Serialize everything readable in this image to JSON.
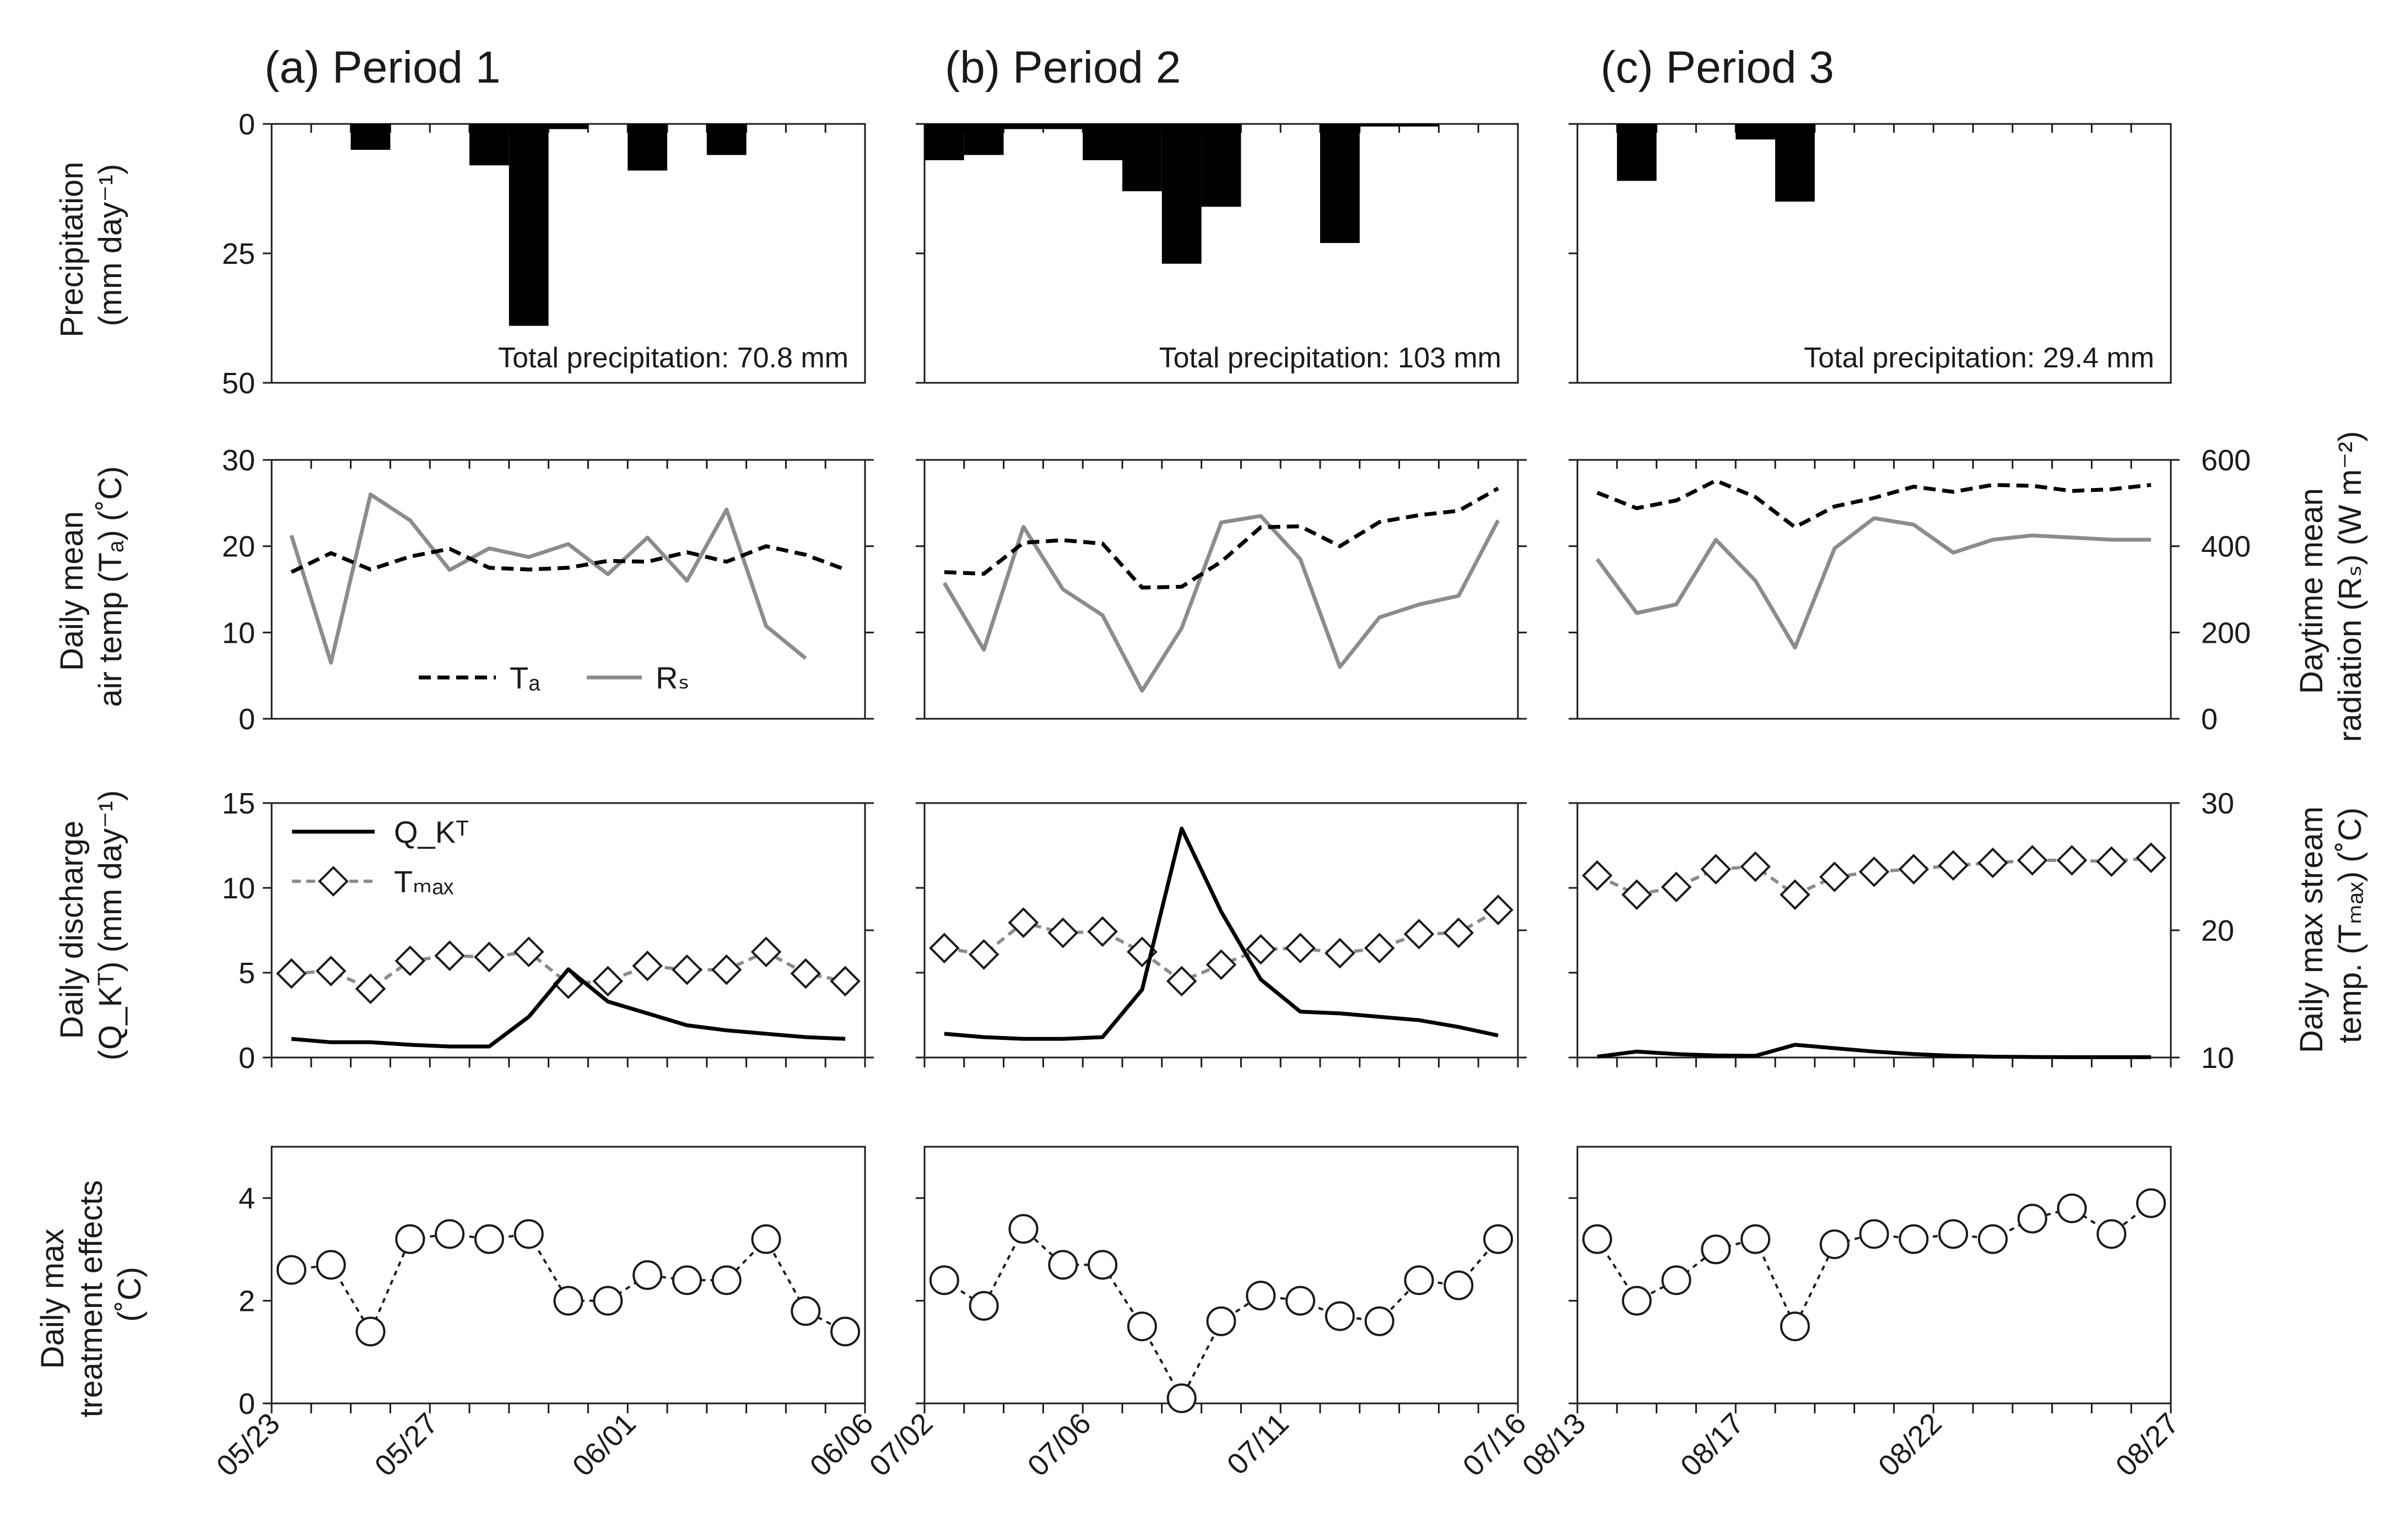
{
  "panels": [
    {
      "title": "(a) Period 1",
      "dates": [
        "05/23",
        "05/27",
        "06/01",
        "06/06"
      ],
      "total_precip": "Total precipitation: 70.8 mm"
    },
    {
      "title": "(b) Period 2",
      "dates": [
        "07/02",
        "07/06",
        "07/11",
        "07/16"
      ],
      "total_precip": "Total precipitation: 103 mm"
    },
    {
      "title": "(c) Period 3",
      "dates": [
        "08/13",
        "08/17",
        "08/22",
        "08/27"
      ],
      "total_precip": "Total precipitation: 29.4 mm"
    }
  ],
  "axes": {
    "precip_label": [
      "Precipitation",
      "(mm day⁻¹)"
    ],
    "temp_label": [
      "Daily mean",
      "air temp (Tₐ) (˚C)"
    ],
    "rad_label": [
      "Daytime mean",
      "radiation (Rₛ) (W m⁻²)"
    ],
    "q_label": [
      "Daily discharge",
      "(Q_Kᵀ) (mm day⁻¹)"
    ],
    "tmax_label": [
      "Daily max stream",
      "temp. (Tₘₐₓ) (˚C)"
    ],
    "effect_label": [
      "Daily max",
      "treatment effects",
      "(˚C)"
    ],
    "precip_ticks": [
      "0",
      "25",
      "50"
    ],
    "temp_ticks": [
      "0",
      "10",
      "20",
      "30"
    ],
    "rad_ticks": [
      "0",
      "200",
      "400",
      "600"
    ],
    "q_ticks": [
      "0",
      "5",
      "10",
      "15"
    ],
    "tmax_ticks": [
      "10",
      "20",
      "30"
    ],
    "effect_ticks": [
      "0",
      "2",
      "4"
    ]
  },
  "legend": {
    "ta": "Tₐ",
    "rs": "Rₛ",
    "q": "Q_Kᵀ",
    "tmax": "Tₘₐₓ"
  },
  "colors": {
    "ta": "#000000",
    "rs": "#8c8c8c",
    "q": "#000000",
    "tmax": "#8c8c8c",
    "bars": "#000000"
  },
  "chart_data": [
    {
      "type": "bar",
      "title": "(a) Period 1",
      "ylabel": "Precipitation (mm day⁻¹)",
      "ylim": [
        0,
        50
      ],
      "inverted": true,
      "x": [
        1,
        2,
        3,
        4,
        5,
        6,
        7,
        8,
        9,
        10,
        11,
        12,
        13,
        14,
        15
      ],
      "values": [
        0,
        0,
        5,
        0,
        0,
        8,
        39,
        1,
        0,
        9,
        0,
        6,
        0,
        0,
        0
      ]
    },
    {
      "type": "bar",
      "title": "(b) Period 2",
      "ylabel": "Precipitation (mm day⁻¹)",
      "ylim": [
        0,
        50
      ],
      "inverted": true,
      "x": [
        1,
        2,
        3,
        4,
        5,
        6,
        7,
        8,
        9,
        10,
        11,
        12,
        13,
        14,
        15
      ],
      "values": [
        7,
        6,
        1,
        1,
        7,
        13,
        27,
        16,
        0,
        0,
        23,
        0.5,
        0.5,
        0,
        0
      ]
    },
    {
      "type": "bar",
      "title": "(c) Period 3",
      "ylabel": "Precipitation (mm day⁻¹)",
      "ylim": [
        0,
        50
      ],
      "inverted": true,
      "x": [
        1,
        2,
        3,
        4,
        5,
        6,
        7,
        8,
        9,
        10,
        11,
        12,
        13,
        14,
        15
      ],
      "values": [
        0,
        11,
        0,
        0,
        3,
        15,
        0,
        0,
        0,
        0,
        0,
        0,
        0,
        0,
        0
      ]
    },
    {
      "type": "line",
      "ylim": [
        0,
        30
      ],
      "y2lim": [
        0,
        600
      ],
      "series": [
        {
          "name": "Tₐ",
          "axis": "left",
          "x": [
            1,
            2,
            3,
            4,
            5,
            6,
            7,
            8,
            9,
            10,
            11,
            12,
            13,
            14,
            15
          ],
          "values": [
            17,
            19.2,
            17.3,
            18.8,
            19.7,
            17.5,
            17.3,
            17.5,
            18.3,
            18.2,
            19.3,
            18.2,
            20,
            19,
            17.3
          ]
        },
        {
          "name": "Rₛ",
          "axis": "right",
          "x": [
            1,
            2,
            3,
            4,
            5,
            6,
            7,
            8,
            9,
            10,
            11,
            12,
            13,
            14,
            15
          ],
          "values": [
            425,
            130,
            520,
            460,
            345,
            395,
            375,
            405,
            335,
            420,
            320,
            485,
            215,
            140,
            null
          ]
        }
      ]
    },
    {
      "type": "line",
      "ylim": [
        0,
        30
      ],
      "y2lim": [
        0,
        600
      ],
      "series": [
        {
          "name": "Tₐ",
          "axis": "left",
          "x": [
            1,
            2,
            3,
            4,
            5,
            6,
            7,
            8,
            9,
            10,
            11,
            12,
            13,
            14,
            15
          ],
          "values": [
            17,
            16.8,
            20.4,
            20.7,
            20.3,
            15.2,
            15.3,
            18.2,
            22.2,
            22.3,
            20,
            22.8,
            23.6,
            24.1,
            26.7
          ]
        },
        {
          "name": "Rₛ",
          "axis": "right",
          "x": [
            1,
            2,
            3,
            4,
            5,
            6,
            7,
            8,
            9,
            10,
            11,
            12,
            13,
            14,
            15
          ],
          "values": [
            315,
            160,
            445,
            300,
            240,
            65,
            210,
            455,
            470,
            370,
            120,
            235,
            265,
            285,
            460
          ]
        }
      ]
    },
    {
      "type": "line",
      "ylim": [
        0,
        30
      ],
      "y2lim": [
        0,
        600
      ],
      "series": [
        {
          "name": "Tₐ",
          "axis": "left",
          "x": [
            1,
            2,
            3,
            4,
            5,
            6,
            7,
            8,
            9,
            10,
            11,
            12,
            13,
            14,
            15
          ],
          "values": [
            26.2,
            24.4,
            25.3,
            27.6,
            25.7,
            22.2,
            24.6,
            25.6,
            26.9,
            26.3,
            27.1,
            27.0,
            26.4,
            26.6,
            27.1
          ]
        },
        {
          "name": "Rₛ",
          "axis": "right",
          "x": [
            1,
            2,
            3,
            4,
            5,
            6,
            7,
            8,
            9,
            10,
            11,
            12,
            13,
            14,
            15
          ],
          "values": [
            370,
            245,
            265,
            415,
            320,
            165,
            395,
            465,
            450,
            385,
            415,
            425,
            420,
            415,
            415
          ]
        }
      ]
    },
    {
      "type": "line",
      "ylim": [
        0,
        15
      ],
      "y2lim": [
        10,
        30
      ],
      "series": [
        {
          "name": "Q_Kᵀ",
          "axis": "left",
          "x": [
            1,
            2,
            3,
            4,
            5,
            6,
            7,
            8,
            9,
            10,
            11,
            12,
            13,
            14,
            15
          ],
          "values": [
            1.1,
            0.9,
            0.9,
            0.75,
            0.65,
            0.65,
            2.4,
            5.2,
            3.3,
            2.6,
            1.9,
            1.6,
            1.4,
            1.2,
            1.1
          ]
        },
        {
          "name": "Tₘₐₓ",
          "axis": "right",
          "x": [
            1,
            2,
            3,
            4,
            5,
            6,
            7,
            8,
            9,
            10,
            11,
            12,
            13,
            14,
            15
          ],
          "values": [
            16.6,
            16.8,
            15.4,
            17.6,
            18.0,
            17.9,
            18.3,
            15.8,
            16.0,
            17.2,
            16.9,
            16.9,
            18.3,
            16.6,
            16.0
          ]
        }
      ]
    },
    {
      "type": "line",
      "ylim": [
        0,
        15
      ],
      "y2lim": [
        10,
        30
      ],
      "series": [
        {
          "name": "Q_Kᵀ",
          "axis": "left",
          "x": [
            1,
            2,
            3,
            4,
            5,
            6,
            7,
            8,
            9,
            10,
            11,
            12,
            13,
            14,
            15
          ],
          "values": [
            1.4,
            1.2,
            1.1,
            1.1,
            1.2,
            4.0,
            13.5,
            8.6,
            4.6,
            2.7,
            2.6,
            2.4,
            2.2,
            1.8,
            1.3
          ]
        },
        {
          "name": "Tₘₐₓ",
          "axis": "right",
          "x": [
            1,
            2,
            3,
            4,
            5,
            6,
            7,
            8,
            9,
            10,
            11,
            12,
            13,
            14,
            15
          ],
          "values": [
            18.6,
            18.1,
            20.6,
            19.8,
            19.9,
            18.3,
            16.0,
            17.3,
            18.5,
            18.6,
            18.2,
            18.6,
            19.7,
            19.8,
            21.6
          ]
        }
      ]
    },
    {
      "type": "line",
      "ylim": [
        0,
        15
      ],
      "y2lim": [
        10,
        30
      ],
      "series": [
        {
          "name": "Q_Kᵀ",
          "axis": "left",
          "x": [
            1,
            2,
            3,
            4,
            5,
            6,
            7,
            8,
            9,
            10,
            11,
            12,
            13,
            14,
            15
          ],
          "values": [
            0.05,
            0.35,
            0.2,
            0.12,
            0.1,
            0.75,
            0.55,
            0.35,
            0.2,
            0.1,
            0.05,
            0.03,
            0.02,
            0.02,
            0.02
          ]
        },
        {
          "name": "Tₘₐₓ",
          "axis": "right",
          "x": [
            1,
            2,
            3,
            4,
            5,
            6,
            7,
            8,
            9,
            10,
            11,
            12,
            13,
            14,
            15
          ],
          "values": [
            24.3,
            22.8,
            23.4,
            24.8,
            25.0,
            22.8,
            24.2,
            24.6,
            24.8,
            25.1,
            25.3,
            25.5,
            25.5,
            25.4,
            25.7
          ]
        }
      ]
    },
    {
      "type": "scatter",
      "ylim": [
        0,
        5
      ],
      "ylabel": "Daily max treatment effects (˚C)",
      "x": [
        1,
        2,
        3,
        4,
        5,
        6,
        7,
        8,
        9,
        10,
        11,
        12,
        13,
        14,
        15
      ],
      "values": [
        2.6,
        2.7,
        1.4,
        3.2,
        3.3,
        3.2,
        3.3,
        2.0,
        2.0,
        2.5,
        2.4,
        2.4,
        3.2,
        1.8,
        1.4
      ]
    },
    {
      "type": "scatter",
      "ylim": [
        0,
        5
      ],
      "x": [
        1,
        2,
        3,
        4,
        5,
        6,
        7,
        8,
        9,
        10,
        11,
        12,
        13,
        14,
        15
      ],
      "values": [
        2.4,
        1.9,
        3.4,
        2.7,
        2.7,
        1.5,
        0.1,
        1.6,
        2.1,
        2.0,
        1.7,
        1.6,
        2.4,
        2.3,
        3.2
      ]
    },
    {
      "type": "scatter",
      "ylim": [
        0,
        5
      ],
      "x": [
        1,
        2,
        3,
        4,
        5,
        6,
        7,
        8,
        9,
        10,
        11,
        12,
        13,
        14,
        15
      ],
      "values": [
        3.2,
        2.0,
        2.4,
        3.0,
        3.2,
        1.5,
        3.1,
        3.3,
        3.2,
        3.3,
        3.2,
        3.6,
        3.8,
        3.3,
        3.9
      ]
    }
  ]
}
